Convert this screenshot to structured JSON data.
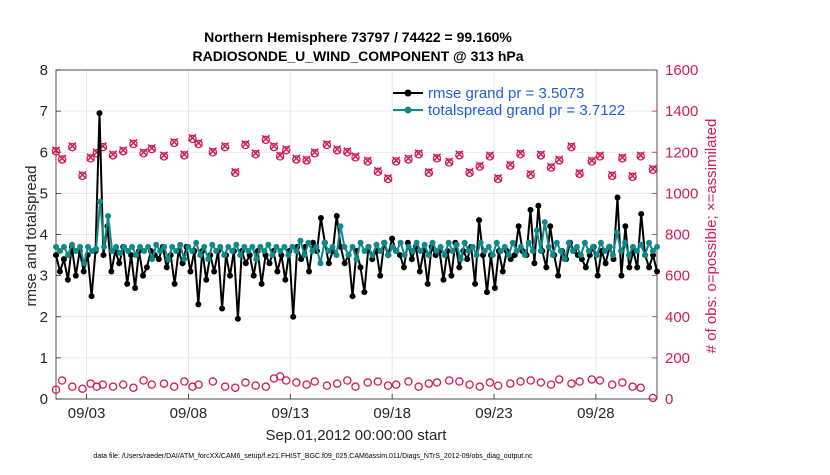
{
  "chart_data": {
    "type": "line",
    "title": "Northern Hemisphere 73797 / 74422 = 99.160%",
    "subtitle": "RADIOSONDE_U_WIND_COMPONENT @ 313 hPa",
    "xlabel": "Sep.01,2012 00:00:00 start",
    "ylabel": "rmse and totalspread",
    "ylabel_right": "# of obs: o=possible; ×=assimilated",
    "footer": "data file: /Users/raeder/DAI/ATM_forcXX/CAM6_setup/f.e21.FHIST_BGC.f09_025.CAM6assim.011/Diags_NTrS_2012-09/obs_diag_output.nc",
    "xlim": [
      1.5,
      31
    ],
    "ylim": [
      0,
      8
    ],
    "ylim_right": [
      0,
      1600
    ],
    "grid": true,
    "x_ticks": [
      3,
      8,
      13,
      18,
      23,
      28
    ],
    "x_tick_labels": [
      "09/03",
      "09/08",
      "09/13",
      "09/18",
      "09/23",
      "09/28"
    ],
    "y_ticks": [
      0,
      1,
      2,
      3,
      4,
      5,
      6,
      7,
      8
    ],
    "y_tick_labels": [
      "0",
      "1",
      "2",
      "3",
      "4",
      "5",
      "6",
      "7",
      "8"
    ],
    "y_right_ticks": [
      0,
      200,
      400,
      600,
      800,
      1000,
      1200,
      1400,
      1600
    ],
    "y_right_tick_labels": [
      "0",
      "200",
      "400",
      "600",
      "800",
      "1000",
      "1200",
      "1400",
      "1600"
    ],
    "series": [
      {
        "name": "rmse",
        "legend": "rmse grand pr = 3.5073",
        "color": "#000000",
        "values": [
          3.5,
          3.1,
          3.4,
          2.9,
          3.7,
          3.0,
          3.6,
          3.1,
          3.5,
          2.5,
          3.6,
          6.95,
          3.5,
          4.2,
          3.1,
          3.6,
          3.3,
          3.7,
          2.8,
          3.5,
          2.7,
          3.6,
          3.0,
          3.2,
          3.6,
          3.5,
          3.4,
          3.7,
          3.2,
          3.5,
          2.8,
          3.6,
          3.3,
          3.7,
          3.1,
          3.6,
          2.3,
          3.6,
          2.9,
          3.5,
          3.1,
          3.6,
          2.2,
          3.5,
          3.0,
          3.6,
          1.95,
          3.6,
          3.3,
          3.5,
          3.0,
          3.6,
          2.8,
          3.5,
          3.3,
          3.6,
          3.1,
          3.5,
          2.9,
          3.6,
          2.0,
          3.7,
          3.4,
          3.7,
          3.1,
          3.8,
          3.6,
          4.4,
          3.8,
          3.3,
          3.6,
          4.45,
          3.7,
          3.3,
          3.5,
          2.5,
          3.6,
          3.2,
          2.6,
          3.7,
          3.4,
          3.6,
          3.0,
          3.8,
          3.5,
          3.9,
          3.6,
          3.5,
          3.2,
          3.8,
          3.4,
          3.7,
          3.1,
          3.6,
          2.8,
          3.7,
          3.5,
          3.6,
          2.9,
          3.6,
          3.0,
          3.8,
          3.2,
          3.6,
          3.4,
          3.7,
          2.8,
          4.35,
          3.5,
          2.6,
          3.5,
          2.7,
          3.6,
          3.1,
          3.6,
          3.4,
          3.5,
          4.2,
          3.6,
          3.5,
          4.6,
          3.3,
          4.7,
          3.6,
          3.2,
          4.2,
          3.5,
          3.0,
          3.6,
          3.4,
          3.8,
          3.6,
          3.5,
          3.4,
          3.2,
          3.5,
          3.7,
          3.0,
          3.6,
          3.3,
          3.7,
          3.4,
          4.9,
          3.0,
          4.2,
          3.2,
          3.6,
          3.2,
          4.5,
          3.5,
          3.2,
          3.5,
          3.1
        ]
      },
      {
        "name": "totalspread",
        "legend": "totalspread grand pr = 3.7122",
        "color": "#0f8a8a",
        "values": [
          3.7,
          3.6,
          3.7,
          3.5,
          3.75,
          3.6,
          3.7,
          3.3,
          3.7,
          3.6,
          3.65,
          4.8,
          3.7,
          4.45,
          3.6,
          3.7,
          3.55,
          3.7,
          3.6,
          3.7,
          3.5,
          3.7,
          3.6,
          3.7,
          3.4,
          3.75,
          3.6,
          3.7,
          3.4,
          3.7,
          3.6,
          3.75,
          3.4,
          3.7,
          3.6,
          3.8,
          3.5,
          3.7,
          3.4,
          3.75,
          3.6,
          3.7,
          3.5,
          3.7,
          3.6,
          3.75,
          3.5,
          3.7,
          3.6,
          3.7,
          3.4,
          3.7,
          3.6,
          3.75,
          3.5,
          3.7,
          3.6,
          3.7,
          3.5,
          3.7,
          3.6,
          3.85,
          3.5,
          3.8,
          3.6,
          3.7,
          3.3,
          3.8,
          3.6,
          3.7,
          3.5,
          4.2,
          3.7,
          3.5,
          3.7,
          3.4,
          3.8,
          3.6,
          3.7,
          3.5,
          3.75,
          3.6,
          3.8,
          3.5,
          3.7,
          3.6,
          3.8,
          3.5,
          3.7,
          3.6,
          3.8,
          3.6,
          3.75,
          3.5,
          3.8,
          3.6,
          3.7,
          3.5,
          3.8,
          3.6,
          3.75,
          3.4,
          3.8,
          3.6,
          3.7,
          3.5,
          3.8,
          3.6,
          3.7,
          3.5,
          3.8,
          3.6,
          3.7,
          3.5,
          3.8,
          3.6,
          3.7,
          3.5,
          3.8,
          3.6,
          4.1,
          3.6,
          4.3,
          3.7,
          3.5,
          3.8,
          3.6,
          3.4,
          3.8,
          3.6,
          3.7,
          3.5,
          3.8,
          3.6,
          3.7,
          3.5,
          3.8,
          3.6,
          3.7,
          3.5,
          4.05,
          3.6,
          3.8,
          3.5,
          3.7,
          3.6,
          3.75,
          3.5,
          3.8,
          3.6,
          3.7
        ]
      },
      {
        "name": "obs_possible",
        "axis": "right",
        "marker": "o",
        "color": "#d01b5c",
        "x": [
          1.5,
          1.8,
          2.3,
          2.8,
          3.2,
          3.5,
          3.8,
          4.3,
          4.8,
          5.3,
          5.8,
          6.2,
          6.8,
          7.3,
          7.8,
          8.2,
          8.5,
          9.2,
          9.8,
          10.3,
          10.8,
          11.3,
          11.8,
          12.2,
          12.5,
          12.8,
          13.3,
          13.8,
          14.2,
          14.8,
          15.3,
          15.8,
          16.2,
          16.8,
          17.3,
          17.8,
          18.2,
          18.8,
          19.3,
          19.8,
          20.2,
          20.8,
          21.3,
          21.8,
          22.3,
          22.8,
          23.2,
          23.8,
          24.3,
          24.8,
          25.3,
          25.8,
          26.2,
          26.8,
          27.2,
          27.8,
          28.2,
          28.8,
          29.3,
          29.8,
          30.2,
          30.8
        ],
        "values": [
          1205,
          1165,
          1225,
          1085,
          1170,
          1195,
          1225,
          1185,
          1205,
          1240,
          1195,
          1215,
          1180,
          1245,
          1185,
          1265,
          1240,
          1200,
          1225,
          1100,
          1235,
          1190,
          1260,
          1225,
          1180,
          1210,
          1165,
          1160,
          1195,
          1235,
          1210,
          1200,
          1175,
          1155,
          1105,
          1070,
          1155,
          1165,
          1190,
          1100,
          1170,
          1150,
          1185,
          1100,
          1130,
          1180,
          1070,
          1135,
          1190,
          1090,
          1185,
          1125,
          1160,
          1225,
          1095,
          1155,
          1180,
          1085,
          1170,
          1080,
          1180,
          1115
        ]
      },
      {
        "name": "obs_assimilated",
        "axis": "right",
        "marker": "x",
        "color": "#d01b5c",
        "x": [
          1.5,
          1.8,
          2.3,
          2.8,
          3.2,
          3.5,
          3.8,
          4.3,
          4.8,
          5.3,
          5.8,
          6.2,
          6.8,
          7.3,
          7.8,
          8.2,
          8.5,
          9.2,
          9.8,
          10.3,
          10.8,
          11.3,
          11.8,
          12.2,
          12.5,
          12.8,
          13.3,
          13.8,
          14.2,
          14.8,
          15.3,
          15.8,
          16.2,
          16.8,
          17.3,
          17.8,
          18.2,
          18.8,
          19.3,
          19.8,
          20.2,
          20.8,
          21.3,
          21.8,
          22.3,
          22.8,
          23.2,
          23.8,
          24.3,
          24.8,
          25.3,
          25.8,
          26.2,
          26.8,
          27.2,
          27.8,
          28.2,
          28.8,
          29.3,
          29.8,
          30.2,
          30.8
        ],
        "values": [
          1210,
          1170,
          1230,
          1090,
          1175,
          1200,
          1230,
          1190,
          1210,
          1245,
          1200,
          1220,
          1185,
          1250,
          1190,
          1270,
          1245,
          1205,
          1230,
          1105,
          1240,
          1195,
          1265,
          1230,
          1185,
          1215,
          1170,
          1165,
          1200,
          1240,
          1215,
          1205,
          1180,
          1160,
          1110,
          1075,
          1160,
          1170,
          1195,
          1105,
          1175,
          1155,
          1190,
          1105,
          1135,
          1185,
          1075,
          1140,
          1195,
          1095,
          1190,
          1130,
          1165,
          1230,
          1100,
          1160,
          1185,
          1090,
          1175,
          1085,
          1185,
          1120
        ]
      },
      {
        "name": "obs_possible_low",
        "axis": "right",
        "marker": "o",
        "color": "#d01b5c",
        "x": [
          1.5,
          1.8,
          2.3,
          2.8,
          3.2,
          3.5,
          3.8,
          4.3,
          4.8,
          5.3,
          5.8,
          6.2,
          6.8,
          7.3,
          7.8,
          8.2,
          8.5,
          9.2,
          9.8,
          10.3,
          10.8,
          11.3,
          11.8,
          12.2,
          12.5,
          12.8,
          13.3,
          13.8,
          14.2,
          14.8,
          15.3,
          15.8,
          16.2,
          16.8,
          17.3,
          17.8,
          18.2,
          18.8,
          19.3,
          19.8,
          20.2,
          20.8,
          21.3,
          21.8,
          22.3,
          22.8,
          23.2,
          23.8,
          24.3,
          24.8,
          25.3,
          25.8,
          26.2,
          26.8,
          27.2,
          27.8,
          28.2,
          28.8,
          29.3,
          29.8,
          30.2,
          30.8
        ],
        "values": [
          45,
          90,
          60,
          50,
          75,
          60,
          70,
          60,
          70,
          55,
          90,
          70,
          75,
          60,
          85,
          60,
          70,
          85,
          60,
          55,
          80,
          65,
          60,
          100,
          110,
          90,
          80,
          70,
          85,
          65,
          75,
          90,
          60,
          80,
          85,
          65,
          70,
          85,
          60,
          75,
          80,
          90,
          85,
          70,
          60,
          80,
          65,
          75,
          85,
          90,
          80,
          70,
          95,
          75,
          85,
          95,
          90,
          70,
          80,
          60,
          55,
          5
        ]
      }
    ]
  }
}
